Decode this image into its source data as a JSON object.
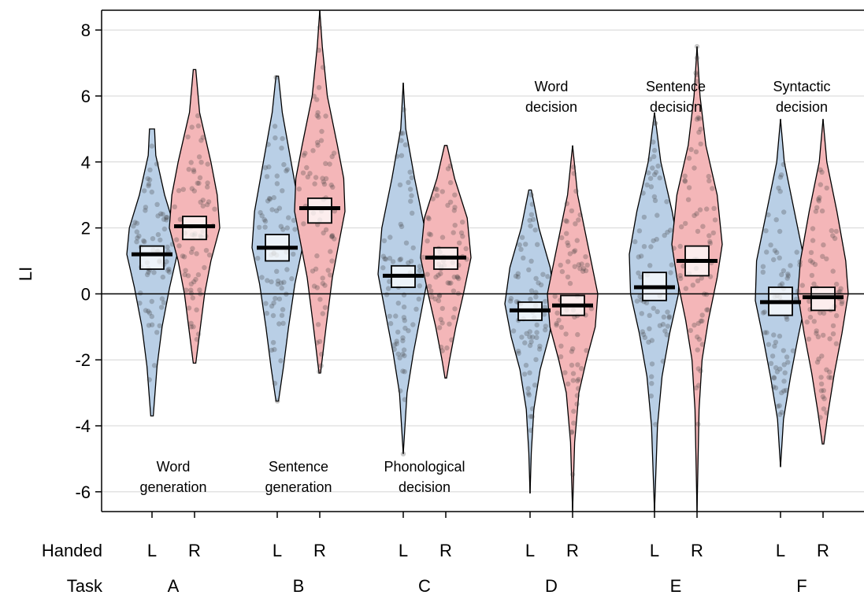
{
  "chart_data": {
    "type": "violin",
    "title": "",
    "ylabel": "LI",
    "xlabel": "",
    "ylim": [
      -6.6,
      8.6
    ],
    "yticks": [
      8,
      6,
      4,
      2,
      0,
      -2,
      -4,
      -6
    ],
    "grid": true,
    "row_labels": {
      "handed": "Handed",
      "task": "Task"
    },
    "colors": {
      "L": "#b9cfe6",
      "R": "#f4b6b8",
      "median": "#000000",
      "ci_box": "#ffffff"
    },
    "tasks": [
      {
        "letter": "A",
        "annotation": [
          "Word",
          "generation"
        ],
        "annotation_pos": "bottom",
        "groups": [
          {
            "hand": "L",
            "median": 1.2,
            "ci": [
              0.75,
              1.45
            ],
            "min": -3.7,
            "max": 5.0,
            "profile": [
              [
                5.0,
                0.1
              ],
              [
                4.2,
                0.15
              ],
              [
                3.0,
                0.5
              ],
              [
                2.0,
                0.9
              ],
              [
                1.2,
                1.0
              ],
              [
                0.2,
                0.7
              ],
              [
                -1.0,
                0.4
              ],
              [
                -2.2,
                0.2
              ],
              [
                -3.7,
                0.05
              ]
            ]
          },
          {
            "hand": "R",
            "median": 2.05,
            "ci": [
              1.65,
              2.35
            ],
            "min": -2.1,
            "max": 6.8,
            "profile": [
              [
                6.8,
                0.05
              ],
              [
                5.5,
                0.2
              ],
              [
                4.0,
                0.65
              ],
              [
                3.0,
                0.9
              ],
              [
                2.0,
                1.0
              ],
              [
                1.0,
                0.65
              ],
              [
                0.0,
                0.4
              ],
              [
                -1.2,
                0.2
              ],
              [
                -2.1,
                0.05
              ]
            ]
          }
        ]
      },
      {
        "letter": "B",
        "annotation": [
          "Sentence",
          "generation"
        ],
        "annotation_pos": "bottom",
        "groups": [
          {
            "hand": "L",
            "median": 1.4,
            "ci": [
              1.0,
              1.8
            ],
            "min": -3.25,
            "max": 6.6,
            "profile": [
              [
                6.6,
                0.05
              ],
              [
                5.5,
                0.2
              ],
              [
                4.0,
                0.55
              ],
              [
                2.5,
                0.9
              ],
              [
                1.4,
                1.0
              ],
              [
                0.3,
                0.7
              ],
              [
                -1.0,
                0.45
              ],
              [
                -2.2,
                0.25
              ],
              [
                -3.25,
                0.05
              ]
            ]
          },
          {
            "hand": "R",
            "median": 2.6,
            "ci": [
              2.15,
              2.9
            ],
            "min": -2.4,
            "max": 8.6,
            "profile": [
              [
                8.6,
                0.0
              ],
              [
                7.5,
                0.1
              ],
              [
                6.0,
                0.3
              ],
              [
                4.5,
                0.7
              ],
              [
                3.5,
                0.95
              ],
              [
                2.5,
                1.0
              ],
              [
                1.5,
                0.75
              ],
              [
                0.5,
                0.5
              ],
              [
                -1.0,
                0.25
              ],
              [
                -2.4,
                0.03
              ]
            ]
          }
        ]
      },
      {
        "letter": "C",
        "annotation": [
          "Phonological",
          "decision"
        ],
        "annotation_pos": "bottom",
        "groups": [
          {
            "hand": "L",
            "median": 0.55,
            "ci": [
              0.2,
              0.85
            ],
            "min": -4.85,
            "max": 6.4,
            "profile": [
              [
                6.4,
                0.0
              ],
              [
                5.0,
                0.1
              ],
              [
                3.5,
                0.45
              ],
              [
                2.0,
                0.85
              ],
              [
                0.6,
                1.0
              ],
              [
                -0.6,
                0.7
              ],
              [
                -1.8,
                0.4
              ],
              [
                -3.0,
                0.15
              ],
              [
                -4.85,
                0.0
              ]
            ]
          },
          {
            "hand": "R",
            "median": 1.1,
            "ci": [
              0.75,
              1.4
            ],
            "min": -2.55,
            "max": 4.5,
            "profile": [
              [
                4.5,
                0.05
              ],
              [
                3.5,
                0.35
              ],
              [
                2.3,
                0.85
              ],
              [
                1.1,
                1.0
              ],
              [
                0.0,
                0.7
              ],
              [
                -1.0,
                0.4
              ],
              [
                -2.0,
                0.15
              ],
              [
                -2.55,
                0.03
              ]
            ]
          }
        ]
      },
      {
        "letter": "D",
        "annotation": [
          "Word",
          "decision"
        ],
        "annotation_pos": "top",
        "groups": [
          {
            "hand": "L",
            "median": -0.5,
            "ci": [
              -0.8,
              -0.25
            ],
            "min": -6.05,
            "max": 3.15,
            "profile": [
              [
                3.15,
                0.05
              ],
              [
                2.0,
                0.35
              ],
              [
                0.8,
                0.8
              ],
              [
                -0.3,
                1.0
              ],
              [
                -1.3,
                0.75
              ],
              [
                -2.3,
                0.4
              ],
              [
                -3.5,
                0.15
              ],
              [
                -4.8,
                0.05
              ],
              [
                -6.05,
                0.0
              ]
            ]
          },
          {
            "hand": "R",
            "median": -0.35,
            "ci": [
              -0.65,
              -0.05
            ],
            "min": -6.6,
            "max": 4.5,
            "profile": [
              [
                4.5,
                0.0
              ],
              [
                3.0,
                0.2
              ],
              [
                1.5,
                0.6
              ],
              [
                0.0,
                1.0
              ],
              [
                -1.0,
                0.9
              ],
              [
                -2.0,
                0.55
              ],
              [
                -3.0,
                0.25
              ],
              [
                -4.5,
                0.08
              ],
              [
                -6.6,
                0.0
              ]
            ]
          }
        ]
      },
      {
        "letter": "E",
        "annotation": [
          "Sentence",
          "decision"
        ],
        "annotation_pos": "top",
        "groups": [
          {
            "hand": "L",
            "median": 0.2,
            "ci": [
              -0.2,
              0.65
            ],
            "min": -6.6,
            "max": 5.5,
            "profile": [
              [
                5.5,
                0.0
              ],
              [
                4.0,
                0.25
              ],
              [
                2.5,
                0.7
              ],
              [
                1.2,
                1.0
              ],
              [
                0.0,
                0.95
              ],
              [
                -1.2,
                0.6
              ],
              [
                -2.5,
                0.3
              ],
              [
                -4.0,
                0.12
              ],
              [
                -6.6,
                0.0
              ]
            ]
          },
          {
            "hand": "R",
            "median": 1.0,
            "ci": [
              0.55,
              1.45
            ],
            "min": -6.6,
            "max": 7.5,
            "profile": [
              [
                7.5,
                0.0
              ],
              [
                6.0,
                0.12
              ],
              [
                4.5,
                0.35
              ],
              [
                3.0,
                0.8
              ],
              [
                1.5,
                1.0
              ],
              [
                0.5,
                0.8
              ],
              [
                -0.8,
                0.45
              ],
              [
                -2.0,
                0.2
              ],
              [
                -3.5,
                0.08
              ],
              [
                -6.6,
                0.0
              ]
            ]
          }
        ]
      },
      {
        "letter": "F",
        "annotation": [
          "Syntactic",
          "decision"
        ],
        "annotation_pos": "top",
        "groups": [
          {
            "hand": "L",
            "median": -0.25,
            "ci": [
              -0.65,
              0.2
            ],
            "min": -5.25,
            "max": 5.3,
            "profile": [
              [
                5.3,
                0.0
              ],
              [
                4.0,
                0.15
              ],
              [
                2.5,
                0.55
              ],
              [
                1.0,
                0.95
              ],
              [
                -0.2,
                1.0
              ],
              [
                -1.3,
                0.7
              ],
              [
                -2.5,
                0.4
              ],
              [
                -3.8,
                0.12
              ],
              [
                -5.25,
                0.0
              ]
            ]
          },
          {
            "hand": "R",
            "median": -0.1,
            "ci": [
              -0.5,
              0.2
            ],
            "min": -4.55,
            "max": 5.3,
            "profile": [
              [
                5.3,
                0.0
              ],
              [
                4.0,
                0.15
              ],
              [
                2.5,
                0.55
              ],
              [
                1.0,
                0.9
              ],
              [
                0.0,
                1.0
              ],
              [
                -1.2,
                0.75
              ],
              [
                -2.4,
                0.45
              ],
              [
                -3.6,
                0.2
              ],
              [
                -4.55,
                0.03
              ]
            ]
          }
        ]
      }
    ]
  }
}
